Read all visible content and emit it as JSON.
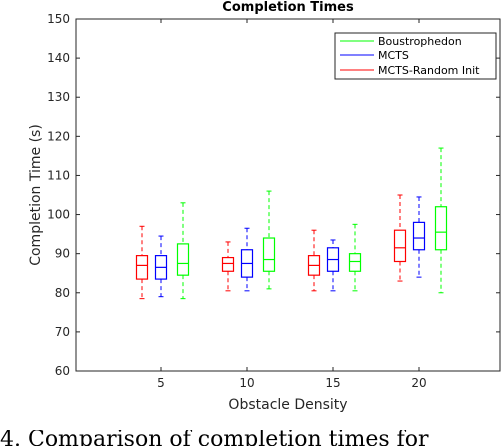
{
  "chart_data": {
    "type": "box",
    "title": "Completion Times",
    "xlabel": "Obstacle Density",
    "ylabel": "Completion Time (s)",
    "ylim": [
      60,
      150
    ],
    "y_ticks": [
      60,
      70,
      80,
      90,
      100,
      110,
      120,
      130,
      140,
      150
    ],
    "categories": [
      "5",
      "10",
      "15",
      "20"
    ],
    "legend_position": "top-right",
    "grid": false,
    "series": [
      {
        "name": "MCTS-Random Init",
        "color": "#ff0000",
        "boxes": [
          {
            "min": 78.5,
            "q1": 83.5,
            "median": 87.0,
            "q3": 89.5,
            "max": 97.0
          },
          {
            "min": 80.5,
            "q1": 85.5,
            "median": 87.5,
            "q3": 89.0,
            "max": 93.0
          },
          {
            "min": 80.5,
            "q1": 84.5,
            "median": 87.0,
            "q3": 89.5,
            "max": 96.0
          },
          {
            "min": 83.0,
            "q1": 88.0,
            "median": 91.5,
            "q3": 96.0,
            "max": 105.0
          }
        ]
      },
      {
        "name": "MCTS",
        "color": "#0000ff",
        "boxes": [
          {
            "min": 79.0,
            "q1": 83.5,
            "median": 86.5,
            "q3": 89.5,
            "max": 94.5
          },
          {
            "min": 80.5,
            "q1": 84.0,
            "median": 87.5,
            "q3": 91.0,
            "max": 96.5
          },
          {
            "min": 80.5,
            "q1": 85.5,
            "median": 88.5,
            "q3": 91.5,
            "max": 93.5
          },
          {
            "min": 84.0,
            "q1": 91.0,
            "median": 94.0,
            "q3": 98.0,
            "max": 104.5
          }
        ]
      },
      {
        "name": "Boustrophedon",
        "color": "#00ff00",
        "boxes": [
          {
            "min": 78.5,
            "q1": 84.5,
            "median": 87.5,
            "q3": 92.5,
            "max": 103.0
          },
          {
            "min": 81.0,
            "q1": 85.5,
            "median": 88.5,
            "q3": 94.0,
            "max": 106.0
          },
          {
            "min": 80.5,
            "q1": 85.5,
            "median": 88.0,
            "q3": 90.0,
            "max": 97.5
          },
          {
            "min": 80.0,
            "q1": 91.0,
            "median": 95.5,
            "q3": 102.0,
            "max": 117.0
          }
        ]
      }
    ],
    "legend": [
      "Boustrophedon",
      "MCTS",
      "MCTS-Random Init"
    ]
  },
  "caption": "4.  Comparison of completion times for"
}
